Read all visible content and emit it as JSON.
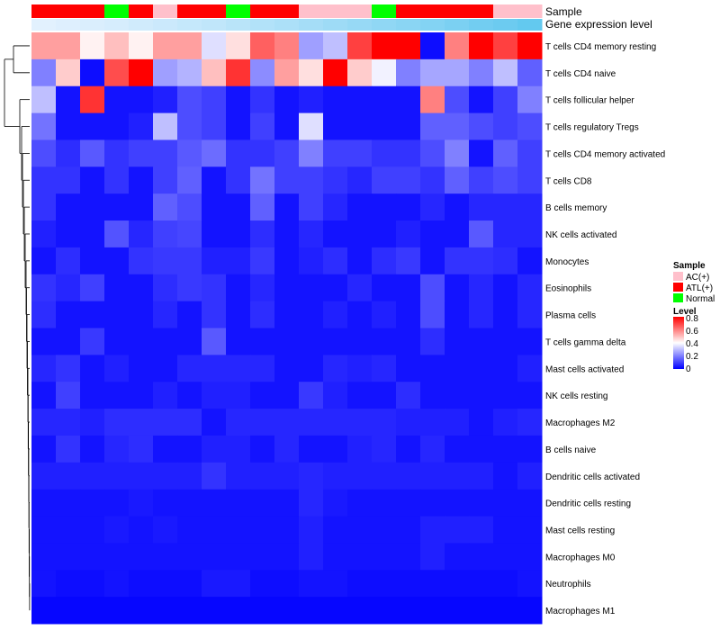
{
  "chart_data": {
    "type": "heatmap",
    "title": "",
    "annotation_rows": [
      {
        "label": "Sample",
        "values": [
          "ATL(+)",
          "ATL(+)",
          "ATL(+)",
          "Normal",
          "ATL(+)",
          "AC(+)",
          "ATL(+)",
          "ATL(+)",
          "Normal",
          "ATL(+)",
          "ATL(+)",
          "AC(+)",
          "AC(+)",
          "AC(+)",
          "Normal",
          "ATL(+)",
          "ATL(+)",
          "ATL(+)",
          "ATL(+)",
          "AC(+)",
          "AC(+)"
        ]
      },
      {
        "label": "Gene expression level",
        "values": [
          0.03,
          0.06,
          0.09,
          0.12,
          0.16,
          0.2,
          0.24,
          0.28,
          0.33,
          0.38,
          0.43,
          0.48,
          0.53,
          0.58,
          0.63,
          0.68,
          0.73,
          0.79,
          0.85,
          0.9,
          0.96
        ]
      }
    ],
    "rows": [
      "T cells CD4 memory resting",
      "T cells CD4 naive",
      "T cells follicular helper",
      "T cells regulatory  Tregs",
      "T cells CD4 memory activated",
      "T cells CD8",
      "B cells memory",
      "NK cells activated",
      "Monocytes",
      "Eosinophils",
      "Plasma cells",
      "T cells gamma delta",
      "Mast cells activated",
      "NK cells resting",
      "Macrophages M2",
      "B cells naive",
      "Dendritic cells activated",
      "Dendritic cells resting",
      "Mast cells resting",
      "Macrophages M0",
      "Neutrophils",
      "Macrophages M1"
    ],
    "values": [
      [
        0.55,
        0.55,
        0.42,
        0.5,
        0.42,
        0.55,
        0.55,
        0.35,
        0.45,
        0.65,
        0.6,
        0.25,
        0.3,
        0.7,
        0.8,
        0.8,
        0.02,
        0.6,
        0.8,
        0.7,
        0.8
      ],
      [
        0.2,
        0.48,
        0.02,
        0.68,
        0.8,
        0.25,
        0.28,
        0.5,
        0.72,
        0.22,
        0.55,
        0.45,
        0.8,
        0.48,
        0.38,
        0.2,
        0.26,
        0.26,
        0.2,
        0.3,
        0.15
      ],
      [
        0.3,
        0.03,
        0.72,
        0.03,
        0.03,
        0.05,
        0.12,
        0.1,
        0.03,
        0.08,
        0.03,
        0.05,
        0.03,
        0.03,
        0.03,
        0.03,
        0.6,
        0.12,
        0.03,
        0.1,
        0.2
      ],
      [
        0.18,
        0.03,
        0.03,
        0.03,
        0.05,
        0.3,
        0.12,
        0.1,
        0.03,
        0.1,
        0.03,
        0.35,
        0.03,
        0.03,
        0.03,
        0.03,
        0.15,
        0.15,
        0.12,
        0.1,
        0.12
      ],
      [
        0.12,
        0.07,
        0.14,
        0.08,
        0.1,
        0.1,
        0.14,
        0.17,
        0.08,
        0.08,
        0.1,
        0.2,
        0.1,
        0.1,
        0.08,
        0.08,
        0.12,
        0.2,
        0.03,
        0.15,
        0.1
      ],
      [
        0.08,
        0.08,
        0.03,
        0.08,
        0.03,
        0.1,
        0.15,
        0.03,
        0.08,
        0.18,
        0.1,
        0.1,
        0.08,
        0.06,
        0.1,
        0.1,
        0.08,
        0.15,
        0.1,
        0.12,
        0.1
      ],
      [
        0.08,
        0.03,
        0.03,
        0.03,
        0.03,
        0.15,
        0.12,
        0.03,
        0.03,
        0.15,
        0.03,
        0.1,
        0.06,
        0.03,
        0.03,
        0.03,
        0.06,
        0.03,
        0.06,
        0.06,
        0.06
      ],
      [
        0.05,
        0.03,
        0.03,
        0.13,
        0.06,
        0.1,
        0.11,
        0.03,
        0.03,
        0.07,
        0.03,
        0.06,
        0.03,
        0.03,
        0.03,
        0.05,
        0.03,
        0.03,
        0.14,
        0.06,
        0.06
      ],
      [
        0.03,
        0.07,
        0.03,
        0.03,
        0.08,
        0.09,
        0.09,
        0.05,
        0.05,
        0.09,
        0.03,
        0.05,
        0.07,
        0.03,
        0.07,
        0.09,
        0.03,
        0.08,
        0.08,
        0.07,
        0.03
      ],
      [
        0.08,
        0.06,
        0.1,
        0.03,
        0.03,
        0.07,
        0.09,
        0.08,
        0.03,
        0.06,
        0.03,
        0.03,
        0.03,
        0.06,
        0.03,
        0.03,
        0.12,
        0.03,
        0.06,
        0.03,
        0.06
      ],
      [
        0.07,
        0.03,
        0.03,
        0.03,
        0.03,
        0.06,
        0.03,
        0.08,
        0.03,
        0.07,
        0.03,
        0.03,
        0.05,
        0.03,
        0.05,
        0.03,
        0.12,
        0.03,
        0.06,
        0.03,
        0.06
      ],
      [
        0.03,
        0.03,
        0.09,
        0.03,
        0.03,
        0.03,
        0.03,
        0.14,
        0.03,
        0.03,
        0.03,
        0.03,
        0.03,
        0.03,
        0.03,
        0.03,
        0.07,
        0.03,
        0.03,
        0.03,
        0.03
      ],
      [
        0.06,
        0.08,
        0.03,
        0.05,
        0.03,
        0.03,
        0.06,
        0.06,
        0.06,
        0.06,
        0.03,
        0.03,
        0.06,
        0.05,
        0.06,
        0.03,
        0.03,
        0.03,
        0.03,
        0.03,
        0.05
      ],
      [
        0.03,
        0.1,
        0.03,
        0.03,
        0.03,
        0.05,
        0.03,
        0.05,
        0.05,
        0.03,
        0.03,
        0.09,
        0.05,
        0.03,
        0.03,
        0.07,
        0.03,
        0.03,
        0.03,
        0.03,
        0.03
      ],
      [
        0.06,
        0.06,
        0.05,
        0.07,
        0.07,
        0.07,
        0.07,
        0.03,
        0.06,
        0.06,
        0.06,
        0.06,
        0.06,
        0.06,
        0.06,
        0.05,
        0.05,
        0.05,
        0.03,
        0.05,
        0.06
      ],
      [
        0.03,
        0.08,
        0.03,
        0.06,
        0.07,
        0.03,
        0.03,
        0.05,
        0.05,
        0.03,
        0.06,
        0.03,
        0.03,
        0.05,
        0.06,
        0.03,
        0.06,
        0.03,
        0.03,
        0.03,
        0.03
      ],
      [
        0.05,
        0.05,
        0.05,
        0.05,
        0.05,
        0.05,
        0.05,
        0.08,
        0.05,
        0.05,
        0.05,
        0.06,
        0.05,
        0.05,
        0.05,
        0.05,
        0.05,
        0.05,
        0.05,
        0.03,
        0.05
      ],
      [
        0.03,
        0.03,
        0.03,
        0.03,
        0.04,
        0.03,
        0.03,
        0.03,
        0.03,
        0.03,
        0.03,
        0.06,
        0.04,
        0.03,
        0.03,
        0.03,
        0.03,
        0.03,
        0.03,
        0.03,
        0.03
      ],
      [
        0.03,
        0.03,
        0.03,
        0.04,
        0.03,
        0.04,
        0.03,
        0.03,
        0.03,
        0.03,
        0.03,
        0.05,
        0.03,
        0.03,
        0.03,
        0.03,
        0.05,
        0.05,
        0.05,
        0.03,
        0.03
      ],
      [
        0.03,
        0.03,
        0.03,
        0.03,
        0.03,
        0.03,
        0.03,
        0.03,
        0.03,
        0.03,
        0.03,
        0.05,
        0.03,
        0.03,
        0.03,
        0.03,
        0.05,
        0.03,
        0.03,
        0.03,
        0.03
      ],
      [
        0.03,
        0.02,
        0.02,
        0.03,
        0.02,
        0.02,
        0.02,
        0.04,
        0.04,
        0.02,
        0.02,
        0.03,
        0.03,
        0.02,
        0.02,
        0.02,
        0.02,
        0.02,
        0.02,
        0.02,
        0.03
      ],
      [
        0.01,
        0.01,
        0.01,
        0.01,
        0.01,
        0.01,
        0.01,
        0.01,
        0.01,
        0.01,
        0.01,
        0.01,
        0.01,
        0.01,
        0.01,
        0.01,
        0.01,
        0.01,
        0.01,
        0.01,
        0.01
      ]
    ],
    "color_scale": {
      "min": 0,
      "max": 0.8,
      "low": "#0000ff",
      "mid": "#ffffff",
      "high": "#ff0000"
    },
    "legend": {
      "sample_title": "Sample",
      "sample_items": [
        {
          "label": "AC(+)",
          "color": "#ffc0cb"
        },
        {
          "label": "ATL(+)",
          "color": "#ff0000"
        },
        {
          "label": "Normal",
          "color": "#00ff00"
        }
      ],
      "level_title": "Level",
      "level_ticks": [
        0.8,
        0.6,
        0.4,
        0.2,
        0
      ],
      "position": "right"
    },
    "expression_colors": {
      "low": "#e6f2ff",
      "high": "#5ec7ee"
    },
    "dendrogram": "rows"
  }
}
